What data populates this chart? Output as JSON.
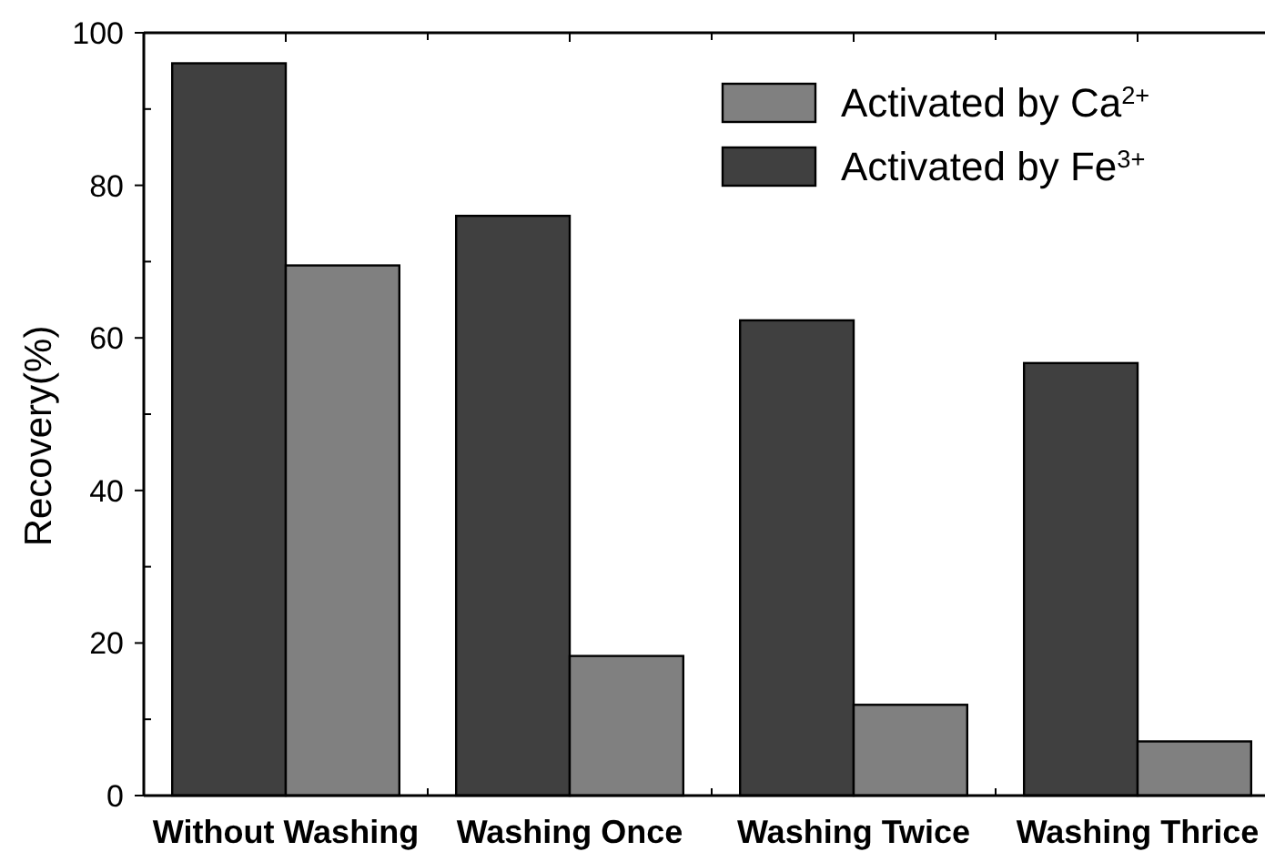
{
  "chart_data": {
    "type": "bar",
    "ylabel": "Recovery(%)",
    "categories": [
      "Without Washing",
      "Washing Once",
      "Washing Twice",
      "Washing Thrice"
    ],
    "series": [
      {
        "name": "Activated by Fe$^{3+}$",
        "color": "#404040",
        "values": [
          96,
          76,
          62.3,
          56.7
        ]
      },
      {
        "name": "Activated by Ca$^{2+}$",
        "color": "#808080",
        "values": [
          69.5,
          18.3,
          11.9,
          7.1
        ]
      }
    ],
    "ylim": [
      0,
      100
    ],
    "yticks": [
      0,
      {
        "value": 10,
        "label": null
      },
      20,
      {
        "value": 30,
        "label": null
      },
      40,
      {
        "value": 50,
        "label": null
      },
      60,
      {
        "value": 70,
        "label": null
      },
      80,
      {
        "value": 90,
        "label": null
      },
      100
    ],
    "legend": "top right"
  }
}
